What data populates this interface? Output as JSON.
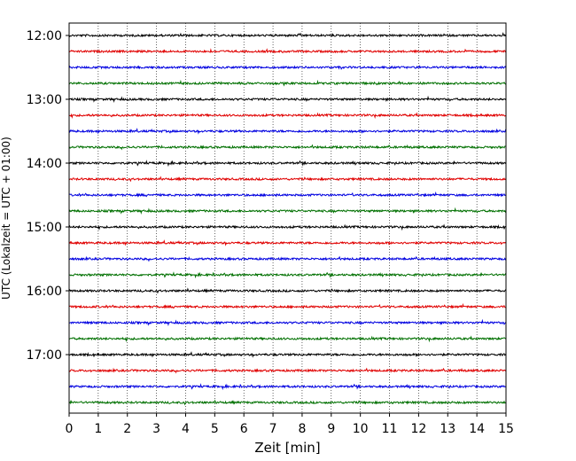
{
  "chart_data": {
    "type": "line",
    "title": "",
    "xlabel": "Zeit  [min]",
    "ylabel": "UTC (Lokalzeit = UTC + 01:00)",
    "xlim": [
      0,
      15
    ],
    "x_ticks": [
      "0",
      "1",
      "2",
      "3",
      "4",
      "5",
      "6",
      "7",
      "8",
      "9",
      "10",
      "11",
      "12",
      "13",
      "14",
      "15"
    ],
    "y_ticks": [
      "12:00",
      "13:00",
      "14:00",
      "15:00",
      "16:00",
      "17:00"
    ],
    "trace_interval_min": 15,
    "trace_start": "12:00",
    "trace_count": 24,
    "trace_colors": [
      "#000000",
      "#e00000",
      "#0000e0",
      "#007000"
    ],
    "grid": "vertical dotted at each minute",
    "legend": "none"
  }
}
